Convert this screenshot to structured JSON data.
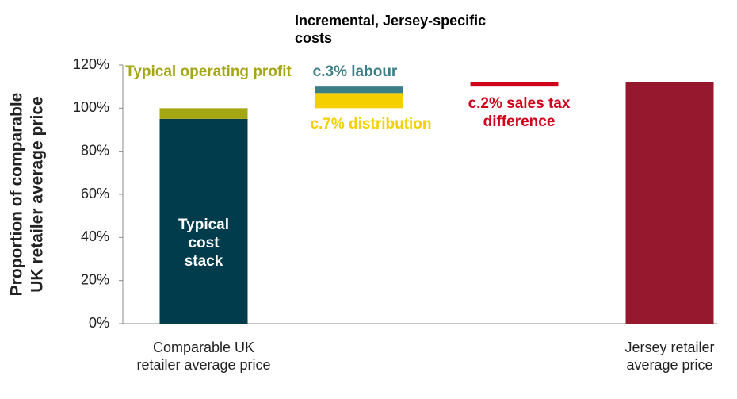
{
  "chart_data": {
    "type": "waterfall",
    "annotation": "Incremental, Jersey-specific costs",
    "ylabel": [
      "Proportion of comparable",
      "UK retailer average price"
    ],
    "categories": [
      "Comparable UK retailer average price",
      null,
      null,
      "Jersey retailer average price"
    ],
    "series": [
      {
        "name": "Typical cost stack",
        "color": "#003c4c",
        "label_color": "#ffffff",
        "values": [
          95,
          null,
          null,
          null
        ]
      },
      {
        "name": "Typical operating profit",
        "color": "#a5a614",
        "values": [
          5,
          null,
          null,
          null
        ]
      },
      {
        "name": "c.7% distribution",
        "color": "#f5cf00",
        "values": [
          null,
          7,
          null,
          null
        ]
      },
      {
        "name": "c.3% labour",
        "color": "#3a7f86",
        "values": [
          null,
          3,
          null,
          null
        ]
      },
      {
        "name": "c.2% sales tax difference",
        "color": "#d0021b",
        "values": [
          null,
          null,
          2,
          null
        ]
      }
    ],
    "total_values": [
      null,
      null,
      null,
      112
    ],
    "total_color": "#95182f",
    "ylim": [
      0,
      120
    ],
    "yticks": [
      {
        "value": 0,
        "label": "0%"
      },
      {
        "value": 20,
        "label": "20%"
      },
      {
        "value": 40,
        "label": "40%"
      },
      {
        "value": 60,
        "label": "60%"
      },
      {
        "value": 80,
        "label": "80%"
      },
      {
        "value": 100,
        "label": "100%"
      },
      {
        "value": 120,
        "label": "120%"
      }
    ]
  }
}
